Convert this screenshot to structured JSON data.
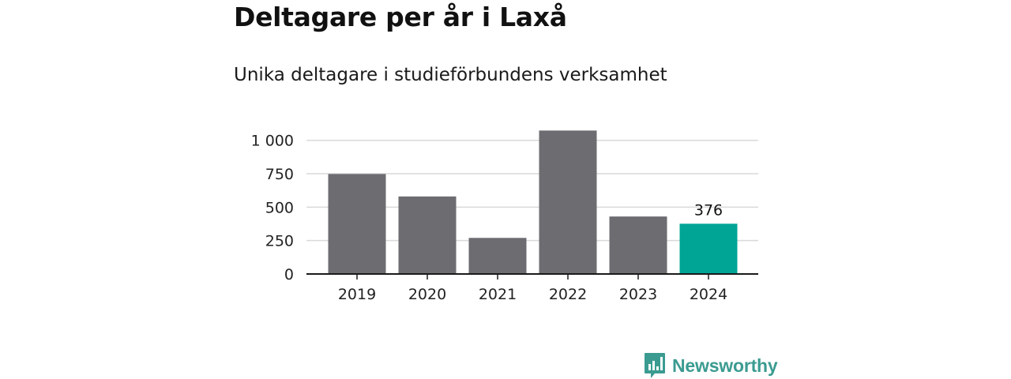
{
  "title": "Deltagare per år i Laxå",
  "subtitle": "Unika deltagare i studieförbundens verksamhet",
  "brand": {
    "name": "Newsworthy",
    "color": "#3b9b91",
    "icon": "newsworthy-logo-icon"
  },
  "colors": {
    "bar_default": "#6d6c71",
    "bar_highlight": "#00a596",
    "gridline": "#d9d9d9",
    "axis": "#1a1a1a"
  },
  "chart_data": {
    "type": "bar",
    "categories": [
      "2019",
      "2020",
      "2021",
      "2022",
      "2023",
      "2024"
    ],
    "values": [
      748,
      580,
      270,
      1073,
      430,
      376
    ],
    "highlight_index": 5,
    "data_labels": [
      {
        "index": 5,
        "text": "376"
      }
    ],
    "title": "Deltagare per år i Laxå",
    "subtitle": "Unika deltagare i studieförbundens verksamhet",
    "ylim": [
      0,
      1075
    ],
    "yticks": [
      {
        "value": 0,
        "label": "0"
      },
      {
        "value": 250,
        "label": "250"
      },
      {
        "value": 500,
        "label": "500"
      },
      {
        "value": 750,
        "label": "750"
      },
      {
        "value": 1000,
        "label": "1 000"
      }
    ],
    "grid": true,
    "legend": "none"
  }
}
